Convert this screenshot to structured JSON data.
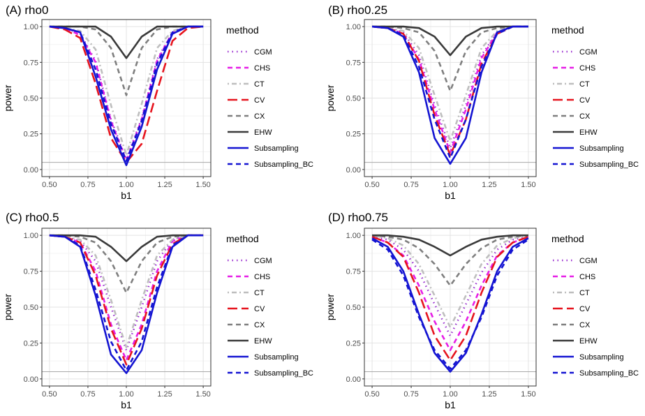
{
  "legend": {
    "title": "method",
    "items": [
      {
        "name": "CGM",
        "color": "#9B30D0",
        "dash": "dot"
      },
      {
        "name": "CHS",
        "color": "#E61EE6",
        "dash": "dash"
      },
      {
        "name": "CT",
        "color": "#BEBEBE",
        "dash": "dotdash"
      },
      {
        "name": "CV",
        "color": "#E6141E",
        "dash": "longdash"
      },
      {
        "name": "CX",
        "color": "#7F7F7F",
        "dash": "dash"
      },
      {
        "name": "EHW",
        "color": "#3A3A3A",
        "dash": "solid"
      },
      {
        "name": "Subsampling",
        "color": "#1414D2",
        "dash": "solid"
      },
      {
        "name": "Subsampling_BC",
        "color": "#1414D2",
        "dash": "dash"
      }
    ]
  },
  "chart_data": [
    {
      "type": "line",
      "title": "(A) rho0",
      "xlabel": "b1",
      "ylabel": "power",
      "xlim": [
        0.5,
        1.5
      ],
      "ylim": [
        0,
        1
      ],
      "xticks": [
        "0.50",
        "0.75",
        "1.00",
        "1.25",
        "1.50"
      ],
      "yticks": [
        "0.00",
        "0.25",
        "0.50",
        "0.75",
        "1.00"
      ],
      "reference_line": 0.05,
      "x": [
        0.5,
        0.6,
        0.7,
        0.8,
        0.9,
        1.0,
        1.1,
        1.2,
        1.3,
        1.4,
        1.5
      ],
      "series": [
        {
          "name": "CGM",
          "values": [
            1.0,
            0.99,
            0.95,
            0.76,
            0.35,
            0.07,
            0.36,
            0.77,
            0.96,
            1.0,
            1.0
          ]
        },
        {
          "name": "CHS",
          "values": [
            1.0,
            0.99,
            0.94,
            0.75,
            0.34,
            0.06,
            0.35,
            0.76,
            0.96,
            1.0,
            1.0
          ]
        },
        {
          "name": "CT",
          "values": [
            1.0,
            0.99,
            0.97,
            0.84,
            0.45,
            0.1,
            0.46,
            0.85,
            0.97,
            1.0,
            1.0
          ]
        },
        {
          "name": "CV",
          "values": [
            1.0,
            0.98,
            0.92,
            0.6,
            0.22,
            0.05,
            0.18,
            0.55,
            0.9,
            0.99,
            1.0
          ]
        },
        {
          "name": "CX",
          "values": [
            1.0,
            1.0,
            1.0,
            0.98,
            0.85,
            0.52,
            0.85,
            0.98,
            1.0,
            1.0,
            1.0
          ]
        },
        {
          "name": "EHW",
          "values": [
            1.0,
            1.0,
            1.0,
            1.0,
            0.93,
            0.78,
            0.93,
            1.0,
            1.0,
            1.0,
            1.0
          ]
        },
        {
          "name": "Subsampling",
          "values": [
            1.0,
            0.99,
            0.96,
            0.65,
            0.28,
            0.03,
            0.3,
            0.7,
            0.95,
            1.0,
            1.0
          ]
        },
        {
          "name": "Subsampling_BC",
          "values": [
            1.0,
            0.99,
            0.96,
            0.7,
            0.32,
            0.06,
            0.34,
            0.74,
            0.96,
            1.0,
            1.0
          ]
        }
      ]
    },
    {
      "type": "line",
      "title": "(B) rho0.25",
      "xlabel": "b1",
      "ylabel": "power",
      "xlim": [
        0.5,
        1.5
      ],
      "ylim": [
        0,
        1
      ],
      "xticks": [
        "0.50",
        "0.75",
        "1.00",
        "1.25",
        "1.50"
      ],
      "yticks": [
        "0.00",
        "0.25",
        "0.50",
        "0.75",
        "1.00"
      ],
      "reference_line": 0.05,
      "x": [
        0.5,
        0.6,
        0.7,
        0.8,
        0.9,
        1.0,
        1.1,
        1.2,
        1.3,
        1.4,
        1.5
      ],
      "series": [
        {
          "name": "CGM",
          "values": [
            1.0,
            0.99,
            0.96,
            0.8,
            0.45,
            0.15,
            0.45,
            0.8,
            0.96,
            1.0,
            1.0
          ]
        },
        {
          "name": "CHS",
          "values": [
            1.0,
            0.99,
            0.95,
            0.77,
            0.42,
            0.12,
            0.42,
            0.78,
            0.96,
            1.0,
            1.0
          ]
        },
        {
          "name": "CT",
          "values": [
            1.0,
            0.99,
            0.97,
            0.85,
            0.52,
            0.2,
            0.52,
            0.85,
            0.97,
            1.0,
            1.0
          ]
        },
        {
          "name": "CV",
          "values": [
            1.0,
            0.99,
            0.95,
            0.76,
            0.38,
            0.1,
            0.35,
            0.74,
            0.95,
            1.0,
            1.0
          ]
        },
        {
          "name": "CX",
          "values": [
            1.0,
            1.0,
            0.99,
            0.96,
            0.83,
            0.55,
            0.83,
            0.96,
            0.99,
            1.0,
            1.0
          ]
        },
        {
          "name": "EHW",
          "values": [
            1.0,
            1.0,
            1.0,
            0.99,
            0.93,
            0.8,
            0.93,
            0.99,
            1.0,
            1.0,
            1.0
          ]
        },
        {
          "name": "Subsampling",
          "values": [
            1.0,
            0.99,
            0.93,
            0.68,
            0.22,
            0.04,
            0.22,
            0.68,
            0.96,
            1.0,
            1.0
          ]
        },
        {
          "name": "Subsampling_BC",
          "values": [
            1.0,
            0.99,
            0.94,
            0.72,
            0.35,
            0.08,
            0.35,
            0.72,
            0.95,
            1.0,
            1.0
          ]
        }
      ]
    },
    {
      "type": "line",
      "title": "(C) rho0.5",
      "xlabel": "b1",
      "ylabel": "power",
      "xlim": [
        0.5,
        1.5
      ],
      "ylim": [
        0,
        1
      ],
      "xticks": [
        "0.50",
        "0.75",
        "1.00",
        "1.25",
        "1.50"
      ],
      "yticks": [
        "0.00",
        "0.25",
        "0.50",
        "0.75",
        "1.00"
      ],
      "reference_line": 0.05,
      "x": [
        0.5,
        0.6,
        0.7,
        0.8,
        0.9,
        1.0,
        1.1,
        1.2,
        1.3,
        1.4,
        1.5
      ],
      "series": [
        {
          "name": "CGM",
          "values": [
            1.0,
            0.99,
            0.96,
            0.82,
            0.5,
            0.2,
            0.5,
            0.82,
            0.97,
            1.0,
            1.0
          ]
        },
        {
          "name": "CHS",
          "values": [
            1.0,
            0.99,
            0.95,
            0.75,
            0.38,
            0.13,
            0.38,
            0.75,
            0.96,
            1.0,
            1.0
          ]
        },
        {
          "name": "CT",
          "values": [
            1.0,
            0.99,
            0.97,
            0.86,
            0.55,
            0.22,
            0.55,
            0.86,
            0.97,
            1.0,
            1.0
          ]
        },
        {
          "name": "CV",
          "values": [
            1.0,
            0.99,
            0.95,
            0.72,
            0.35,
            0.1,
            0.35,
            0.72,
            0.94,
            1.0,
            1.0
          ]
        },
        {
          "name": "CX",
          "values": [
            1.0,
            1.0,
            0.99,
            0.95,
            0.82,
            0.6,
            0.82,
            0.95,
            0.99,
            1.0,
            1.0
          ]
        },
        {
          "name": "EHW",
          "values": [
            1.0,
            1.0,
            1.0,
            0.99,
            0.92,
            0.82,
            0.92,
            0.99,
            1.0,
            1.0,
            1.0
          ]
        },
        {
          "name": "Subsampling",
          "values": [
            1.0,
            0.99,
            0.92,
            0.58,
            0.17,
            0.04,
            0.2,
            0.6,
            0.92,
            1.0,
            1.0
          ]
        },
        {
          "name": "Subsampling_BC",
          "values": [
            1.0,
            0.99,
            0.93,
            0.62,
            0.26,
            0.06,
            0.26,
            0.64,
            0.93,
            1.0,
            1.0
          ]
        }
      ]
    },
    {
      "type": "line",
      "title": "(D) rho0.75",
      "xlabel": "b1",
      "ylabel": "power",
      "xlim": [
        0.5,
        1.5
      ],
      "ylim": [
        0,
        1
      ],
      "xticks": [
        "0.50",
        "0.75",
        "1.00",
        "1.25",
        "1.50"
      ],
      "yticks": [
        "0.00",
        "0.25",
        "0.50",
        "0.75",
        "1.00"
      ],
      "reference_line": 0.05,
      "x": [
        0.5,
        0.6,
        0.7,
        0.8,
        0.9,
        1.0,
        1.1,
        1.2,
        1.3,
        1.4,
        1.5
      ],
      "series": [
        {
          "name": "CGM",
          "values": [
            0.99,
            0.97,
            0.9,
            0.75,
            0.52,
            0.3,
            0.52,
            0.74,
            0.9,
            0.97,
            0.99
          ]
        },
        {
          "name": "CHS",
          "values": [
            0.99,
            0.95,
            0.86,
            0.65,
            0.4,
            0.2,
            0.4,
            0.65,
            0.86,
            0.95,
            0.99
          ]
        },
        {
          "name": "CT",
          "values": [
            1.0,
            0.98,
            0.93,
            0.8,
            0.58,
            0.36,
            0.58,
            0.8,
            0.93,
            0.98,
            1.0
          ]
        },
        {
          "name": "CV",
          "values": [
            0.99,
            0.95,
            0.85,
            0.6,
            0.3,
            0.13,
            0.3,
            0.6,
            0.85,
            0.95,
            0.99
          ]
        },
        {
          "name": "CX",
          "values": [
            1.0,
            0.99,
            0.97,
            0.91,
            0.8,
            0.65,
            0.8,
            0.91,
            0.97,
            0.99,
            1.0
          ]
        },
        {
          "name": "EHW",
          "values": [
            1.0,
            1.0,
            0.99,
            0.97,
            0.92,
            0.86,
            0.92,
            0.97,
            0.99,
            1.0,
            1.0
          ]
        },
        {
          "name": "Subsampling",
          "values": [
            0.98,
            0.92,
            0.75,
            0.45,
            0.18,
            0.05,
            0.18,
            0.45,
            0.75,
            0.92,
            0.98
          ]
        },
        {
          "name": "Subsampling_BC",
          "values": [
            0.97,
            0.9,
            0.72,
            0.43,
            0.2,
            0.07,
            0.2,
            0.43,
            0.72,
            0.9,
            0.97
          ]
        }
      ]
    }
  ]
}
